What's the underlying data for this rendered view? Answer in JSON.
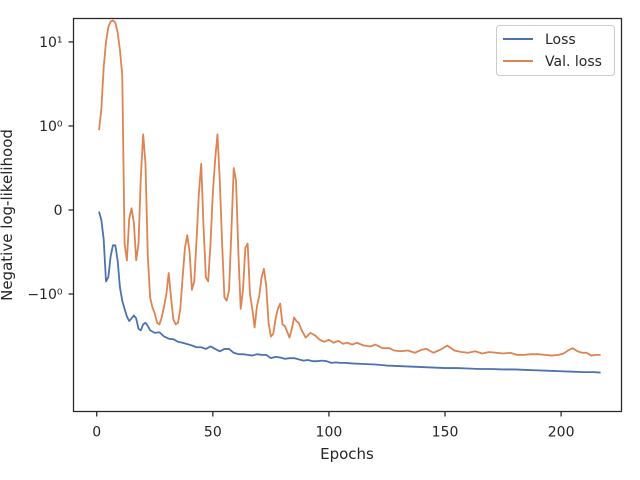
{
  "chart_data": {
    "type": "line",
    "xlabel": "Epochs",
    "ylabel": "Negative log-likelihood",
    "xlim": [
      -10,
      226
    ],
    "yscale": "symlog",
    "ylim": [
      -25,
      19
    ],
    "x_ticks": [
      0,
      50,
      100,
      150,
      200
    ],
    "x_tick_labels": [
      "0",
      "50",
      "100",
      "150",
      "200"
    ],
    "y_ticks": [
      -1,
      0,
      1,
      10
    ],
    "y_tick_labels": [
      "−10⁰",
      "0",
      "10⁰",
      "10¹"
    ],
    "grid": false,
    "legend_position": "top-right",
    "series": [
      {
        "name": "Loss",
        "color": "#4c72b0",
        "points": [
          [
            1,
            -0.02
          ],
          [
            2,
            -0.12
          ],
          [
            3,
            -0.35
          ],
          [
            4,
            -0.85
          ],
          [
            5,
            -0.8
          ],
          [
            6,
            -0.55
          ],
          [
            7,
            -0.42
          ],
          [
            8,
            -0.42
          ],
          [
            9,
            -0.6
          ],
          [
            10,
            -0.92
          ],
          [
            11,
            -1.2
          ],
          [
            12,
            -1.5
          ],
          [
            13,
            -1.85
          ],
          [
            14,
            -2.1
          ],
          [
            15,
            -1.95
          ],
          [
            16,
            -1.8
          ],
          [
            17,
            -1.95
          ],
          [
            18,
            -2.6
          ],
          [
            19,
            -2.7
          ],
          [
            20,
            -2.3
          ],
          [
            21,
            -2.2
          ],
          [
            22,
            -2.4
          ],
          [
            23,
            -2.7
          ],
          [
            25,
            -2.9
          ],
          [
            27,
            -2.85
          ],
          [
            29,
            -3.2
          ],
          [
            31,
            -3.4
          ],
          [
            33,
            -3.45
          ],
          [
            35,
            -3.7
          ],
          [
            37,
            -3.8
          ],
          [
            39,
            -3.95
          ],
          [
            41,
            -4.1
          ],
          [
            43,
            -4.3
          ],
          [
            45,
            -4.3
          ],
          [
            47,
            -4.5
          ],
          [
            49,
            -4.2
          ],
          [
            51,
            -4.5
          ],
          [
            53,
            -4.8
          ],
          [
            55,
            -4.5
          ],
          [
            57,
            -4.5
          ],
          [
            59,
            -5.0
          ],
          [
            61,
            -5.2
          ],
          [
            63,
            -5.2
          ],
          [
            65,
            -5.3
          ],
          [
            67,
            -5.4
          ],
          [
            69,
            -5.2
          ],
          [
            71,
            -5.3
          ],
          [
            73,
            -5.3
          ],
          [
            75,
            -5.8
          ],
          [
            77,
            -5.6
          ],
          [
            79,
            -5.7
          ],
          [
            81,
            -5.9
          ],
          [
            83,
            -5.8
          ],
          [
            85,
            -5.8
          ],
          [
            87,
            -6.0
          ],
          [
            89,
            -6.2
          ],
          [
            91,
            -6.1
          ],
          [
            93,
            -6.3
          ],
          [
            95,
            -6.3
          ],
          [
            97,
            -6.2
          ],
          [
            99,
            -6.3
          ],
          [
            101,
            -6.6
          ],
          [
            103,
            -6.5
          ],
          [
            105,
            -6.6
          ],
          [
            107,
            -6.6
          ],
          [
            110,
            -6.7
          ],
          [
            115,
            -6.8
          ],
          [
            120,
            -6.9
          ],
          [
            125,
            -7.1
          ],
          [
            130,
            -7.2
          ],
          [
            135,
            -7.3
          ],
          [
            140,
            -7.4
          ],
          [
            145,
            -7.5
          ],
          [
            150,
            -7.6
          ],
          [
            155,
            -7.6
          ],
          [
            160,
            -7.7
          ],
          [
            165,
            -7.8
          ],
          [
            170,
            -7.8
          ],
          [
            175,
            -7.9
          ],
          [
            180,
            -7.9
          ],
          [
            185,
            -8.0
          ],
          [
            190,
            -8.1
          ],
          [
            195,
            -8.2
          ],
          [
            200,
            -8.3
          ],
          [
            205,
            -8.4
          ],
          [
            210,
            -8.5
          ],
          [
            214,
            -8.5
          ],
          [
            217,
            -8.6
          ]
        ]
      },
      {
        "name": "Val. loss",
        "color": "#dd8452",
        "points": [
          [
            1,
            0.95
          ],
          [
            2,
            1.6
          ],
          [
            3,
            5
          ],
          [
            4,
            10
          ],
          [
            5,
            15
          ],
          [
            6,
            17.5
          ],
          [
            7,
            18
          ],
          [
            8,
            17
          ],
          [
            9,
            13
          ],
          [
            10,
            8
          ],
          [
            11,
            4
          ],
          [
            12,
            -0.4
          ],
          [
            13,
            -0.6
          ],
          [
            14,
            -0.1
          ],
          [
            15,
            0.02
          ],
          [
            16,
            -0.15
          ],
          [
            17,
            -0.6
          ],
          [
            18,
            -0.4
          ],
          [
            19,
            0.4
          ],
          [
            20,
            0.9
          ],
          [
            21,
            0.55
          ],
          [
            22,
            -0.55
          ],
          [
            23,
            -1.1
          ],
          [
            24,
            -1.45
          ],
          [
            25,
            -1.7
          ],
          [
            26,
            -2.2
          ],
          [
            27,
            -2.3
          ],
          [
            28,
            -1.9
          ],
          [
            29,
            -1.4
          ],
          [
            30,
            -1.0
          ],
          [
            31,
            -0.75
          ],
          [
            32,
            -1.1
          ],
          [
            33,
            -2.0
          ],
          [
            34,
            -2.3
          ],
          [
            35,
            -2.2
          ],
          [
            36,
            -1.5
          ],
          [
            37,
            -0.8
          ],
          [
            38,
            -0.45
          ],
          [
            39,
            -0.3
          ],
          [
            40,
            -0.5
          ],
          [
            41,
            -0.95
          ],
          [
            42,
            -0.85
          ],
          [
            43,
            -0.35
          ],
          [
            44,
            0.2
          ],
          [
            45,
            0.55
          ],
          [
            46,
            -0.2
          ],
          [
            47,
            -0.8
          ],
          [
            48,
            -0.85
          ],
          [
            49,
            -0.4
          ],
          [
            50,
            0.2
          ],
          [
            51,
            0.6
          ],
          [
            52,
            0.9
          ],
          [
            53,
            0.35
          ],
          [
            54,
            -0.4
          ],
          [
            55,
            -1.1
          ],
          [
            56,
            -1.2
          ],
          [
            57,
            -0.95
          ],
          [
            58,
            -0.25
          ],
          [
            59,
            0.5
          ],
          [
            60,
            0.35
          ],
          [
            61,
            -0.5
          ],
          [
            62,
            -1.5
          ],
          [
            63,
            -0.95
          ],
          [
            64,
            -0.45
          ],
          [
            65,
            -0.4
          ],
          [
            66,
            -1.0
          ],
          [
            67,
            -1.5
          ],
          [
            68,
            -2.5
          ],
          [
            69,
            -1.4
          ],
          [
            70,
            -1.05
          ],
          [
            71,
            -0.8
          ],
          [
            72,
            -0.7
          ],
          [
            73,
            -0.9
          ],
          [
            74,
            -2.2
          ],
          [
            75,
            -3.2
          ],
          [
            76,
            -3.0
          ],
          [
            77,
            -2.0
          ],
          [
            78,
            -1.5
          ],
          [
            79,
            -1.3
          ],
          [
            80,
            -2.3
          ],
          [
            81,
            -2.4
          ],
          [
            82,
            -2.8
          ],
          [
            83,
            -3.3
          ],
          [
            84,
            -2.6
          ],
          [
            85,
            -1.9
          ],
          [
            86,
            -2.1
          ],
          [
            87,
            -2.2
          ],
          [
            88,
            -2.6
          ],
          [
            90,
            -3.3
          ],
          [
            92,
            -2.9
          ],
          [
            94,
            -3.1
          ],
          [
            96,
            -3.5
          ],
          [
            98,
            -3.7
          ],
          [
            100,
            -3.5
          ],
          [
            102,
            -3.8
          ],
          [
            104,
            -3.6
          ],
          [
            106,
            -3.9
          ],
          [
            108,
            -3.8
          ],
          [
            110,
            -4.0
          ],
          [
            112,
            -3.8
          ],
          [
            115,
            -4.1
          ],
          [
            118,
            -4.2
          ],
          [
            120,
            -4.0
          ],
          [
            123,
            -4.4
          ],
          [
            126,
            -4.4
          ],
          [
            128,
            -4.7
          ],
          [
            131,
            -4.8
          ],
          [
            134,
            -4.7
          ],
          [
            137,
            -5.0
          ],
          [
            140,
            -4.6
          ],
          [
            142,
            -4.5
          ],
          [
            145,
            -5.0
          ],
          [
            148,
            -4.6
          ],
          [
            151,
            -4.1
          ],
          [
            154,
            -4.7
          ],
          [
            157,
            -4.9
          ],
          [
            160,
            -5.0
          ],
          [
            163,
            -4.8
          ],
          [
            166,
            -5.1
          ],
          [
            169,
            -4.9
          ],
          [
            172,
            -5.0
          ],
          [
            175,
            -5.1
          ],
          [
            178,
            -5.0
          ],
          [
            181,
            -5.3
          ],
          [
            184,
            -5.3
          ],
          [
            187,
            -5.2
          ],
          [
            190,
            -5.2
          ],
          [
            193,
            -5.3
          ],
          [
            196,
            -5.4
          ],
          [
            199,
            -5.3
          ],
          [
            201,
            -5.1
          ],
          [
            203,
            -4.7
          ],
          [
            205,
            -4.4
          ],
          [
            207,
            -4.8
          ],
          [
            209,
            -5.0
          ],
          [
            211,
            -5.0
          ],
          [
            213,
            -5.4
          ],
          [
            215,
            -5.3
          ],
          [
            217,
            -5.3
          ]
        ]
      }
    ]
  }
}
